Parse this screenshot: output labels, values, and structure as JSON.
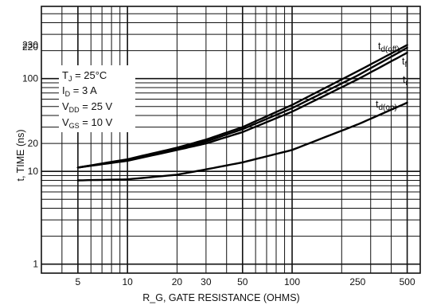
{
  "chart_data": {
    "type": "line",
    "xscale": "log",
    "yscale": "log",
    "xlabel": "R_G, GATE RESISTANCE (OHMS)",
    "ylabel": "t, TIME (ns)",
    "xlim": [
      3,
      600
    ],
    "ylim": [
      0.8,
      600
    ],
    "x_ticks": [
      5,
      10,
      20,
      30,
      50,
      100,
      250,
      500
    ],
    "y_ticks": [
      1,
      10,
      20,
      100,
      220,
      230
    ],
    "grid": "on",
    "conditions": [
      {
        "symbol": "T",
        "sub": "J",
        "rest": " = 25°C"
      },
      {
        "symbol": "I",
        "sub": "D",
        "rest": " = 3 A"
      },
      {
        "symbol": "V",
        "sub": "DD",
        "rest": " = 25 V"
      },
      {
        "symbol": "V",
        "sub": "GS",
        "rest": " = 10 V"
      }
    ],
    "series": [
      {
        "name": "t_d(off)",
        "label_main": "t",
        "label_sub": "d(off)",
        "x": [
          5,
          10,
          20,
          30,
          50,
          100,
          250,
          500
        ],
        "y": [
          11.0,
          13.5,
          18.0,
          22.0,
          30.0,
          52.0,
          120.0,
          230.0
        ]
      },
      {
        "name": "t_f",
        "label_main": "t",
        "label_sub": "f",
        "x": [
          5,
          10,
          20,
          30,
          50,
          100,
          250,
          500
        ],
        "y": [
          11.0,
          13.2,
          17.5,
          21.0,
          28.5,
          48.0,
          108.0,
          215.0
        ]
      },
      {
        "name": "t_r",
        "label_main": "t",
        "label_sub": "r",
        "x": [
          5,
          10,
          20,
          30,
          50,
          100,
          250,
          500
        ],
        "y": [
          11.0,
          13.0,
          17.0,
          20.0,
          26.5,
          44.0,
          98.0,
          190.0
        ]
      },
      {
        "name": "t_d(on)",
        "label_main": "t",
        "label_sub": "d(on)",
        "x": [
          5,
          10,
          20,
          30,
          50,
          100,
          250,
          500
        ],
        "y": [
          8.0,
          8.2,
          9.2,
          10.5,
          12.5,
          17.0,
          32.0,
          55.0
        ]
      }
    ]
  }
}
